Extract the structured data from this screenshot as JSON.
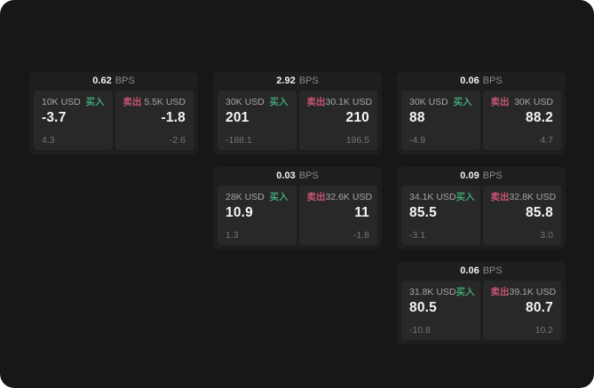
{
  "labels": {
    "bps_unit": "BPS",
    "buy": "买入",
    "sell": "卖出"
  },
  "colors": {
    "buy": "#40a474",
    "sell": "#c75672",
    "app_bg": "#171717",
    "card_bg": "#1e1e1e",
    "panel_bg": "#282828"
  },
  "cards": [
    {
      "bps": "0.62",
      "buy": {
        "size": "10K USD",
        "value": "-3.7",
        "change": "4.3"
      },
      "sell": {
        "size": "5.5K USD",
        "value": "-1.8",
        "change": "-2.6"
      }
    },
    {
      "bps": "2.92",
      "buy": {
        "size": "30K USD",
        "value": "201",
        "change": "-188.1"
      },
      "sell": {
        "size": "30.1K USD",
        "value": "210",
        "change": "196.5"
      }
    },
    {
      "bps": "0.06",
      "buy": {
        "size": "30K USD",
        "value": "88",
        "change": "-4.9"
      },
      "sell": {
        "size": "30K USD",
        "value": "88.2",
        "change": "4.7"
      }
    },
    {
      "bps": "0.03",
      "buy": {
        "size": "28K USD",
        "value": "10.9",
        "change": "1.3"
      },
      "sell": {
        "size": "32.6K USD",
        "value": "11",
        "change": "-1.8"
      }
    },
    {
      "bps": "0.09",
      "buy": {
        "size": "34.1K USD",
        "value": "85.5",
        "change": "-3.1"
      },
      "sell": {
        "size": "32.8K USD",
        "value": "85.8",
        "change": "3.0"
      }
    },
    {
      "bps": "0.06",
      "buy": {
        "size": "31.8K USD",
        "value": "80.5",
        "change": "-10.8"
      },
      "sell": {
        "size": "39.1K USD",
        "value": "80.7",
        "change": "10.2"
      }
    }
  ]
}
